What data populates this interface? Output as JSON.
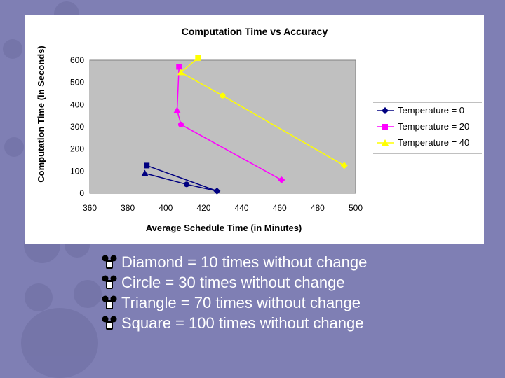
{
  "colors": {
    "background": "#7f7fb4",
    "plot_area": "#c0c0c0",
    "bullet_text": "#ffffff"
  },
  "chart_data": {
    "type": "line",
    "title": "Computation Time vs Accuracy",
    "xlabel": "Average Schedule Time (in Minutes)",
    "ylabel": "Computation Time (in Seconds)",
    "xlim": [
      360,
      500
    ],
    "ylim": [
      0,
      600
    ],
    "xticks": [
      360,
      380,
      400,
      420,
      440,
      460,
      480,
      500
    ],
    "yticks": [
      0,
      100,
      200,
      300,
      400,
      500,
      600
    ],
    "grid": false,
    "legend_position": "right",
    "series": [
      {
        "name": "Temperature = 0",
        "color": "#000080",
        "marker": "diamond",
        "points": [
          {
            "x": 389,
            "y": 90,
            "marker": "triangle"
          },
          {
            "x": 411,
            "y": 40,
            "marker": "circle"
          },
          {
            "x": 427,
            "y": 10,
            "marker": "diamond"
          },
          {
            "x": 390,
            "y": 125,
            "marker": "square"
          }
        ]
      },
      {
        "name": "Temperature = 20",
        "color": "#ff00ff",
        "marker": "square",
        "points": [
          {
            "x": 407,
            "y": 570,
            "marker": "square"
          },
          {
            "x": 406,
            "y": 375,
            "marker": "triangle"
          },
          {
            "x": 408,
            "y": 310,
            "marker": "circle"
          },
          {
            "x": 461,
            "y": 60,
            "marker": "diamond"
          }
        ]
      },
      {
        "name": "Temperature = 40",
        "color": "#ffff00",
        "marker": "triangle",
        "points": [
          {
            "x": 417,
            "y": 610,
            "marker": "square"
          },
          {
            "x": 408,
            "y": 545,
            "marker": "triangle"
          },
          {
            "x": 430,
            "y": 440,
            "marker": "circle"
          },
          {
            "x": 494,
            "y": 125,
            "marker": "diamond"
          }
        ]
      }
    ]
  },
  "bullets": [
    {
      "text": "Diamond = 10 times without change",
      "icon": "mouse-head-icon"
    },
    {
      "text": "Circle = 30 times without change",
      "icon": "mouse-head-icon"
    },
    {
      "text": "Triangle = 70 times without change",
      "icon": "mouse-head-icon"
    },
    {
      "text": "Square = 100 times without change",
      "icon": "mouse-head-icon"
    }
  ]
}
